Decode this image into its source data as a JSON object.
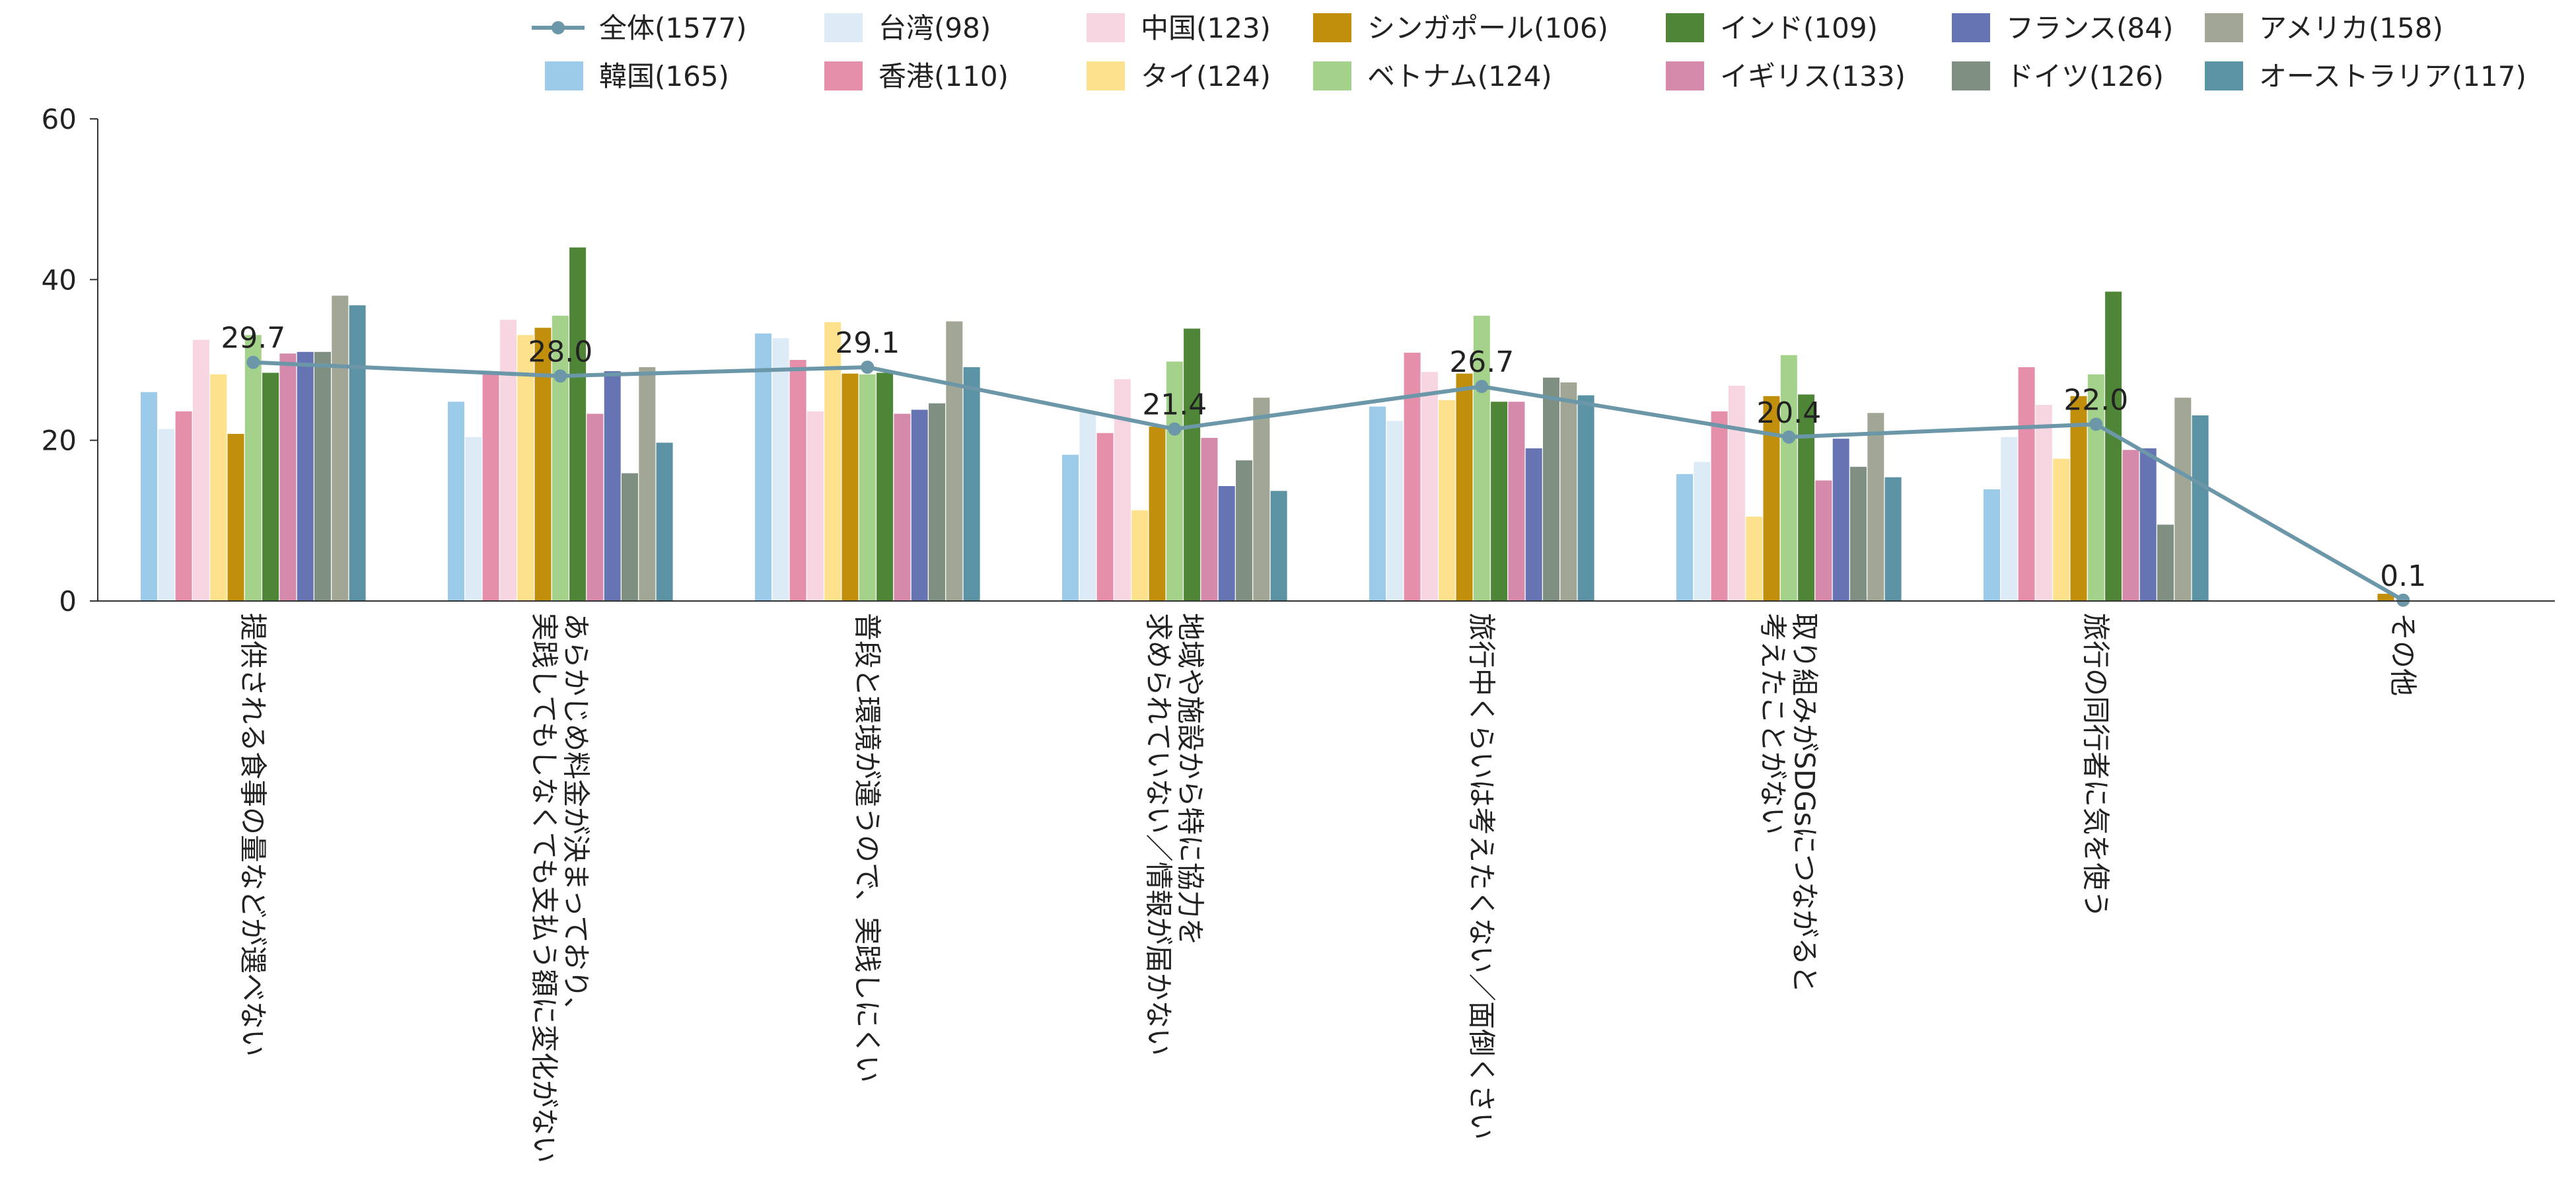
{
  "chart_data": {
    "type": "bar",
    "ylim": [
      0,
      60
    ],
    "yticks": [
      0,
      20,
      40,
      60
    ],
    "categories": [
      [
        "提供される食事の量などが選べない"
      ],
      [
        "あらかじめ料金が決まっており、",
        "実践してもしなくても支払う額に変化がない"
      ],
      [
        "普段と環境が違うので、実践しにくい"
      ],
      [
        "地域や施設から特に協力を",
        "求められていない／情報が届かない"
      ],
      [
        "旅行中くらいは考えたくない／面倒くさい"
      ],
      [
        "取り組みがSDGsにつながると",
        "考えたことがない"
      ],
      [
        "旅行の同行者に気を使う"
      ],
      [
        "その他"
      ]
    ],
    "series": [
      {
        "name": "韓国(165)",
        "color": "#9ccbea",
        "values": [
          26.0,
          24.8,
          33.3,
          18.2,
          24.2,
          15.8,
          13.9,
          0
        ]
      },
      {
        "name": "台湾(98)",
        "color": "#dcebf6",
        "values": [
          21.4,
          20.4,
          32.7,
          23.5,
          22.4,
          17.3,
          20.4,
          0
        ]
      },
      {
        "name": "香港(110)",
        "color": "#e68fab",
        "values": [
          23.6,
          28.2,
          30.0,
          20.9,
          30.9,
          23.6,
          29.1,
          0
        ]
      },
      {
        "name": "中国(123)",
        "color": "#f7d6e1",
        "values": [
          32.5,
          35.0,
          23.6,
          27.6,
          28.5,
          26.8,
          24.4,
          0
        ]
      },
      {
        "name": "タイ(124)",
        "color": "#fde18c",
        "values": [
          28.2,
          33.1,
          34.7,
          11.3,
          25.0,
          10.5,
          17.7,
          0
        ]
      },
      {
        "name": "シンガポール(106)",
        "color": "#c28f0d",
        "values": [
          20.8,
          34.0,
          28.3,
          21.7,
          28.3,
          25.5,
          25.5,
          0.9
        ]
      },
      {
        "name": "ベトナム(124)",
        "color": "#a5d28a",
        "values": [
          33.1,
          35.5,
          28.2,
          29.8,
          35.5,
          30.6,
          28.2,
          0
        ]
      },
      {
        "name": "インド(109)",
        "color": "#4e8537",
        "values": [
          28.4,
          44.0,
          28.4,
          33.9,
          24.8,
          25.7,
          38.5,
          0
        ]
      },
      {
        "name": "イギリス(133)",
        "color": "#d68aab",
        "values": [
          30.8,
          23.3,
          23.3,
          20.3,
          24.8,
          15.0,
          18.8,
          0
        ]
      },
      {
        "name": "フランス(84)",
        "color": "#6674b3",
        "values": [
          31.0,
          28.6,
          23.8,
          14.3,
          19.0,
          20.2,
          19.0,
          0
        ]
      },
      {
        "name": "ドイツ(126)",
        "color": "#7f8f82",
        "values": [
          31.0,
          15.9,
          24.6,
          17.5,
          27.8,
          16.7,
          9.5,
          0
        ]
      },
      {
        "name": "アメリカ(158)",
        "color": "#a2a695",
        "values": [
          38.0,
          29.1,
          34.8,
          25.3,
          27.2,
          23.4,
          25.3,
          0
        ]
      },
      {
        "name": "オーストラリア(117)",
        "color": "#5b93a4",
        "values": [
          36.8,
          19.7,
          29.1,
          13.7,
          25.6,
          15.4,
          23.1,
          0
        ]
      }
    ],
    "line_series": {
      "name": "全体(1577)",
      "color": "#6b97a8",
      "values": [
        29.7,
        28.0,
        29.1,
        21.4,
        26.7,
        20.4,
        22.0,
        0.1
      ],
      "labels": [
        "29.7",
        "28.0",
        "29.1",
        "21.4",
        "26.7",
        "20.4",
        "22.0",
        "0.1"
      ]
    },
    "legend_order": [
      [
        "line",
        0
      ],
      [
        "bar",
        1
      ],
      [
        "bar",
        3
      ],
      [
        "bar",
        5
      ],
      [
        "bar",
        7
      ],
      [
        "bar",
        9
      ],
      [
        "bar",
        11
      ],
      [
        "bar",
        0
      ],
      [
        "bar",
        2
      ],
      [
        "bar",
        4
      ],
      [
        "bar",
        6
      ],
      [
        "bar",
        8
      ],
      [
        "bar",
        10
      ],
      [
        "bar",
        12
      ]
    ]
  }
}
